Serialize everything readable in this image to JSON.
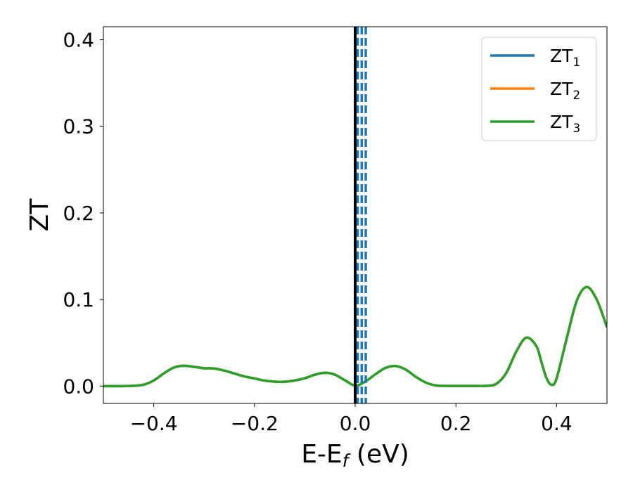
{
  "chart_data": {
    "type": "line",
    "title": "",
    "xlabel": "E-E",
    "xlabel_sub": "f",
    "xlabel_unit": " (eV)",
    "ylabel": "ZT",
    "xlim": [
      -0.5,
      0.5
    ],
    "ylim": [
      -0.02,
      0.415
    ],
    "xticks": [
      -0.4,
      -0.2,
      0.0,
      0.2,
      0.4
    ],
    "xtick_labels": [
      "−0.4",
      "−0.2",
      "0.0",
      "0.2",
      "0.4"
    ],
    "yticks": [
      0.0,
      0.1,
      0.2,
      0.3,
      0.4
    ],
    "ytick_labels": [
      "0.0",
      "0.1",
      "0.2",
      "0.3",
      "0.4"
    ],
    "grid": false,
    "legend_position": "top-right",
    "legend": [
      {
        "base": "ZT",
        "sub": "1",
        "color": "#1f77b4"
      },
      {
        "base": "ZT",
        "sub": "2",
        "color": "#ff7f0e"
      },
      {
        "base": "ZT",
        "sub": "3",
        "color": "#2ca02c"
      }
    ],
    "x": [
      -0.5,
      -0.47,
      -0.44,
      -0.42,
      -0.4,
      -0.38,
      -0.36,
      -0.34,
      -0.32,
      -0.3,
      -0.28,
      -0.26,
      -0.24,
      -0.22,
      -0.2,
      -0.18,
      -0.16,
      -0.14,
      -0.12,
      -0.1,
      -0.08,
      -0.06,
      -0.04,
      -0.02,
      0.0,
      0.02,
      0.04,
      0.06,
      0.08,
      0.1,
      0.12,
      0.14,
      0.16,
      0.18,
      0.2,
      0.22,
      0.24,
      0.26,
      0.28,
      0.3,
      0.32,
      0.34,
      0.36,
      0.37,
      0.38,
      0.39,
      0.4,
      0.42,
      0.44,
      0.46,
      0.48,
      0.5
    ],
    "series": [
      {
        "name": "ZT₁",
        "color": "#1f77b4",
        "values": [
          0.0,
          0.0,
          0.0004,
          0.0017,
          0.0065,
          0.0147,
          0.0215,
          0.0235,
          0.0222,
          0.0207,
          0.0203,
          0.018,
          0.0145,
          0.0112,
          0.0088,
          0.0064,
          0.0052,
          0.0051,
          0.0065,
          0.0091,
          0.0132,
          0.0154,
          0.0132,
          0.0066,
          0.0005,
          0.0052,
          0.0136,
          0.021,
          0.0232,
          0.0192,
          0.0109,
          0.0042,
          0.0008,
          0.0002,
          0.0002,
          0.0002,
          0.0002,
          0.0003,
          0.0025,
          0.0152,
          0.04,
          0.056,
          0.046,
          0.0275,
          0.0091,
          0.0015,
          0.009,
          0.055,
          0.0985,
          0.1145,
          0.0995,
          0.068
        ]
      },
      {
        "name": "ZT₂",
        "color": "#ff7f0e",
        "values": [
          0.0,
          0.0,
          0.0004,
          0.0017,
          0.0065,
          0.0147,
          0.0215,
          0.0235,
          0.0222,
          0.0207,
          0.0203,
          0.018,
          0.0145,
          0.0112,
          0.0088,
          0.0064,
          0.0052,
          0.0051,
          0.0065,
          0.0091,
          0.0132,
          0.0154,
          0.0132,
          0.0066,
          0.0005,
          0.0052,
          0.0136,
          0.021,
          0.0232,
          0.0192,
          0.0109,
          0.0042,
          0.0008,
          0.0002,
          0.0002,
          0.0002,
          0.0002,
          0.0003,
          0.0025,
          0.0152,
          0.04,
          0.056,
          0.046,
          0.0275,
          0.0091,
          0.0015,
          0.009,
          0.055,
          0.0985,
          0.1145,
          0.0995,
          0.068
        ]
      },
      {
        "name": "ZT₃",
        "color": "#2ca02c",
        "values": [
          0.0,
          0.0,
          0.0004,
          0.0017,
          0.0065,
          0.0147,
          0.0215,
          0.0235,
          0.0222,
          0.0207,
          0.0203,
          0.018,
          0.0145,
          0.0112,
          0.0088,
          0.0064,
          0.0052,
          0.0051,
          0.0065,
          0.0091,
          0.0132,
          0.0154,
          0.0132,
          0.0066,
          0.0005,
          0.0052,
          0.0136,
          0.021,
          0.0232,
          0.0192,
          0.0109,
          0.0042,
          0.0008,
          0.0002,
          0.0002,
          0.0002,
          0.0002,
          0.0003,
          0.0025,
          0.0152,
          0.04,
          0.056,
          0.046,
          0.0275,
          0.0091,
          0.0015,
          0.009,
          0.055,
          0.0985,
          0.1145,
          0.0995,
          0.068
        ]
      }
    ],
    "vertical_lines": [
      {
        "x": 0.0,
        "color": "#000000",
        "style": "solid"
      },
      {
        "x": 0.005,
        "color": "#1f77b4",
        "style": "dashed"
      },
      {
        "x": 0.013,
        "color": "#1f77b4",
        "style": "dashed"
      },
      {
        "x": 0.021,
        "color": "#1f77b4",
        "style": "dashed"
      }
    ]
  }
}
